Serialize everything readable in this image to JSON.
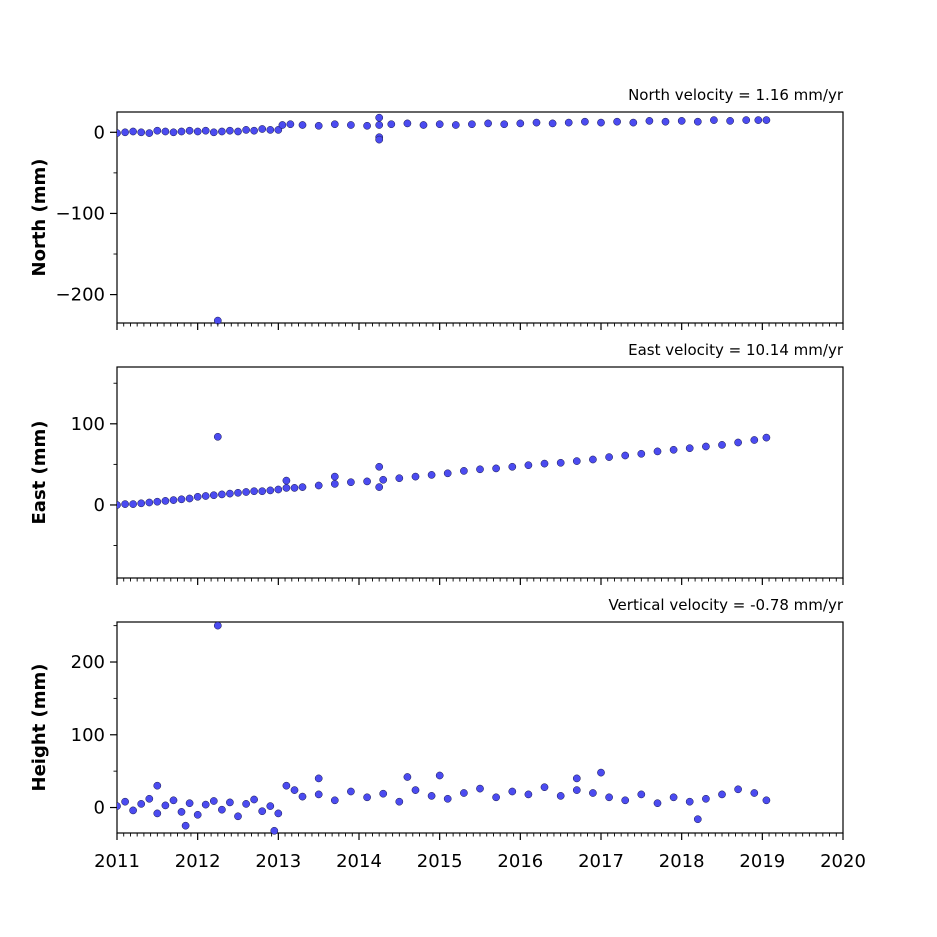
{
  "chart_data": [
    {
      "type": "scatter",
      "panel": "north",
      "title": "North velocity = 1.16 mm/yr",
      "ylabel": "North (mm)",
      "xlim": [
        2011,
        2020
      ],
      "ylim": [
        -235,
        25
      ],
      "yticks": [
        0,
        -100,
        -200
      ],
      "ytick_labels": [
        "0",
        "−100",
        "−200"
      ],
      "xticks": [
        2011,
        2012,
        2013,
        2014,
        2015,
        2016,
        2017,
        2018,
        2019,
        2020
      ],
      "xtick_labels": [],
      "marker_color": "#4b4bf0",
      "series": [
        {
          "points": [
            [
              2011.0,
              -1
            ],
            [
              2011.1,
              0
            ],
            [
              2011.2,
              1
            ],
            [
              2011.3,
              0
            ],
            [
              2011.4,
              -1
            ],
            [
              2011.5,
              2
            ],
            [
              2011.6,
              1
            ],
            [
              2011.7,
              0
            ],
            [
              2011.8,
              1
            ],
            [
              2011.9,
              2
            ],
            [
              2012.0,
              1
            ],
            [
              2012.1,
              2
            ],
            [
              2012.2,
              0
            ],
            [
              2012.3,
              1
            ],
            [
              2012.4,
              2
            ],
            [
              2012.5,
              1
            ],
            [
              2012.6,
              3
            ],
            [
              2012.7,
              2
            ],
            [
              2012.8,
              4
            ],
            [
              2012.9,
              3
            ],
            [
              2013.0,
              3
            ],
            [
              2013.05,
              9
            ],
            [
              2013.15,
              10
            ],
            [
              2013.3,
              9
            ],
            [
              2013.5,
              8
            ],
            [
              2013.7,
              10
            ],
            [
              2013.9,
              9
            ],
            [
              2014.1,
              8
            ],
            [
              2014.25,
              9
            ],
            [
              2014.4,
              10
            ],
            [
              2014.6,
              11
            ],
            [
              2014.8,
              9
            ],
            [
              2015.0,
              10
            ],
            [
              2015.2,
              9
            ],
            [
              2015.4,
              10
            ],
            [
              2015.6,
              11
            ],
            [
              2015.8,
              10
            ],
            [
              2016.0,
              11
            ],
            [
              2016.2,
              12
            ],
            [
              2016.4,
              11
            ],
            [
              2016.6,
              12
            ],
            [
              2016.8,
              13
            ],
            [
              2017.0,
              12
            ],
            [
              2017.2,
              13
            ],
            [
              2017.4,
              12
            ],
            [
              2017.6,
              14
            ],
            [
              2017.8,
              13
            ],
            [
              2018.0,
              14
            ],
            [
              2018.2,
              13
            ],
            [
              2018.4,
              15
            ],
            [
              2018.6,
              14
            ],
            [
              2018.8,
              15
            ],
            [
              2018.95,
              15
            ],
            [
              2019.05,
              15
            ],
            [
              2014.25,
              -6
            ],
            [
              2014.25,
              -9
            ],
            [
              2014.25,
              18
            ],
            [
              2012.25,
              -232
            ]
          ]
        }
      ]
    },
    {
      "type": "scatter",
      "panel": "east",
      "title": "East velocity = 10.14 mm/yr",
      "ylabel": "East (mm)",
      "xlim": [
        2011,
        2020
      ],
      "ylim": [
        -90,
        170
      ],
      "yticks": [
        0,
        100
      ],
      "ytick_labels": [
        "0",
        "100"
      ],
      "xticks": [
        2011,
        2012,
        2013,
        2014,
        2015,
        2016,
        2017,
        2018,
        2019,
        2020
      ],
      "xtick_labels": [],
      "marker_color": "#4b4bf0",
      "series": [
        {
          "points": [
            [
              2011.0,
              0
            ],
            [
              2011.1,
              1
            ],
            [
              2011.2,
              1
            ],
            [
              2011.3,
              2
            ],
            [
              2011.4,
              3
            ],
            [
              2011.5,
              4
            ],
            [
              2011.6,
              5
            ],
            [
              2011.7,
              6
            ],
            [
              2011.8,
              7
            ],
            [
              2011.9,
              8
            ],
            [
              2012.0,
              10
            ],
            [
              2012.1,
              11
            ],
            [
              2012.2,
              12
            ],
            [
              2012.3,
              13
            ],
            [
              2012.4,
              14
            ],
            [
              2012.5,
              15
            ],
            [
              2012.6,
              16
            ],
            [
              2012.7,
              17
            ],
            [
              2012.8,
              17
            ],
            [
              2012.9,
              18
            ],
            [
              2013.0,
              19
            ],
            [
              2013.1,
              21
            ],
            [
              2013.2,
              21
            ],
            [
              2013.3,
              22
            ],
            [
              2013.5,
              24
            ],
            [
              2013.7,
              26
            ],
            [
              2013.9,
              28
            ],
            [
              2014.1,
              29
            ],
            [
              2014.3,
              31
            ],
            [
              2014.5,
              33
            ],
            [
              2014.7,
              35
            ],
            [
              2014.9,
              37
            ],
            [
              2015.1,
              39
            ],
            [
              2015.3,
              42
            ],
            [
              2015.5,
              44
            ],
            [
              2015.7,
              45
            ],
            [
              2015.9,
              47
            ],
            [
              2016.1,
              49
            ],
            [
              2016.3,
              51
            ],
            [
              2016.5,
              52
            ],
            [
              2016.7,
              54
            ],
            [
              2016.9,
              56
            ],
            [
              2017.1,
              59
            ],
            [
              2017.3,
              61
            ],
            [
              2017.5,
              63
            ],
            [
              2017.7,
              66
            ],
            [
              2017.9,
              68
            ],
            [
              2018.1,
              70
            ],
            [
              2018.3,
              72
            ],
            [
              2018.5,
              74
            ],
            [
              2018.7,
              77
            ],
            [
              2018.9,
              80
            ],
            [
              2019.05,
              83
            ],
            [
              2012.25,
              84
            ],
            [
              2014.25,
              47
            ],
            [
              2014.25,
              22
            ],
            [
              2013.1,
              30
            ],
            [
              2013.7,
              35
            ]
          ]
        }
      ]
    },
    {
      "type": "scatter",
      "panel": "height",
      "title": "Vertical velocity = -0.78 mm/yr",
      "ylabel": "Height (mm)",
      "xlim": [
        2011,
        2020
      ],
      "ylim": [
        -35,
        255
      ],
      "yticks": [
        0,
        100,
        200
      ],
      "ytick_labels": [
        "0",
        "100",
        "200"
      ],
      "xticks": [
        2011,
        2012,
        2013,
        2014,
        2015,
        2016,
        2017,
        2018,
        2019,
        2020
      ],
      "xtick_labels": [
        "2011",
        "2012",
        "2013",
        "2014",
        "2015",
        "2016",
        "2017",
        "2018",
        "2019",
        "2020"
      ],
      "marker_color": "#4b4bf0",
      "series": [
        {
          "points": [
            [
              2011.0,
              2
            ],
            [
              2011.1,
              8
            ],
            [
              2011.2,
              -4
            ],
            [
              2011.3,
              5
            ],
            [
              2011.4,
              12
            ],
            [
              2011.5,
              -8
            ],
            [
              2011.6,
              3
            ],
            [
              2011.7,
              10
            ],
            [
              2011.8,
              -6
            ],
            [
              2011.9,
              6
            ],
            [
              2012.0,
              -10
            ],
            [
              2012.1,
              4
            ],
            [
              2012.2,
              9
            ],
            [
              2012.3,
              -3
            ],
            [
              2012.4,
              7
            ],
            [
              2012.5,
              -12
            ],
            [
              2012.6,
              5
            ],
            [
              2012.7,
              11
            ],
            [
              2012.8,
              -5
            ],
            [
              2012.9,
              2
            ],
            [
              2013.0,
              -8
            ],
            [
              2013.1,
              30
            ],
            [
              2013.2,
              24
            ],
            [
              2013.3,
              15
            ],
            [
              2013.5,
              18
            ],
            [
              2013.7,
              10
            ],
            [
              2013.9,
              22
            ],
            [
              2014.1,
              14
            ],
            [
              2014.3,
              19
            ],
            [
              2014.5,
              8
            ],
            [
              2014.7,
              24
            ],
            [
              2014.9,
              16
            ],
            [
              2015.1,
              12
            ],
            [
              2015.3,
              20
            ],
            [
              2015.5,
              26
            ],
            [
              2015.7,
              14
            ],
            [
              2015.9,
              22
            ],
            [
              2016.1,
              18
            ],
            [
              2016.3,
              28
            ],
            [
              2016.5,
              16
            ],
            [
              2016.7,
              24
            ],
            [
              2016.9,
              20
            ],
            [
              2017.1,
              14
            ],
            [
              2017.3,
              10
            ],
            [
              2017.5,
              18
            ],
            [
              2017.7,
              6
            ],
            [
              2017.9,
              14
            ],
            [
              2018.1,
              8
            ],
            [
              2018.2,
              -16
            ],
            [
              2018.3,
              12
            ],
            [
              2018.5,
              18
            ],
            [
              2018.7,
              25
            ],
            [
              2018.9,
              20
            ],
            [
              2019.05,
              10
            ],
            [
              2011.5,
              30
            ],
            [
              2011.85,
              -25
            ],
            [
              2012.95,
              -32
            ],
            [
              2012.25,
              250
            ],
            [
              2017.0,
              48
            ],
            [
              2015.0,
              44
            ],
            [
              2014.6,
              42
            ],
            [
              2016.7,
              40
            ],
            [
              2013.5,
              40
            ]
          ]
        }
      ]
    }
  ]
}
